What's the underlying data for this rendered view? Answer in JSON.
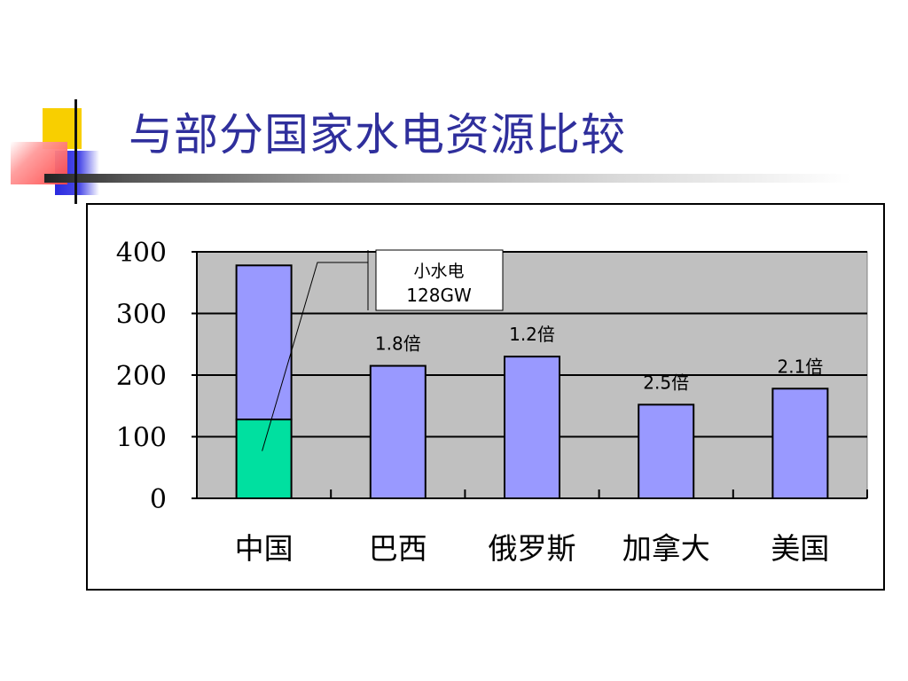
{
  "slide": {
    "title": "与部分国家水电资源比较"
  },
  "chart_data": {
    "type": "bar",
    "categories": [
      "中国",
      "巴西",
      "俄罗斯",
      "加拿大",
      "美国"
    ],
    "series": [
      {
        "values": [
          128,
          0,
          0,
          0,
          0
        ],
        "color": "#00e0a0"
      },
      {
        "values": [
          250,
          215,
          230,
          152,
          178
        ],
        "color": "#9999ff"
      }
    ],
    "stacked": true,
    "ylim": [
      0,
      400
    ],
    "yticks": [
      0,
      100,
      200,
      300,
      400
    ],
    "grid": true,
    "plot_background": "#c0c0c0",
    "data_labels": [
      "",
      "1.8倍",
      "1.2倍",
      "2.5倍",
      "2.1倍"
    ],
    "callout": {
      "title": "小水电",
      "value": "128GW",
      "category": "中国"
    }
  }
}
